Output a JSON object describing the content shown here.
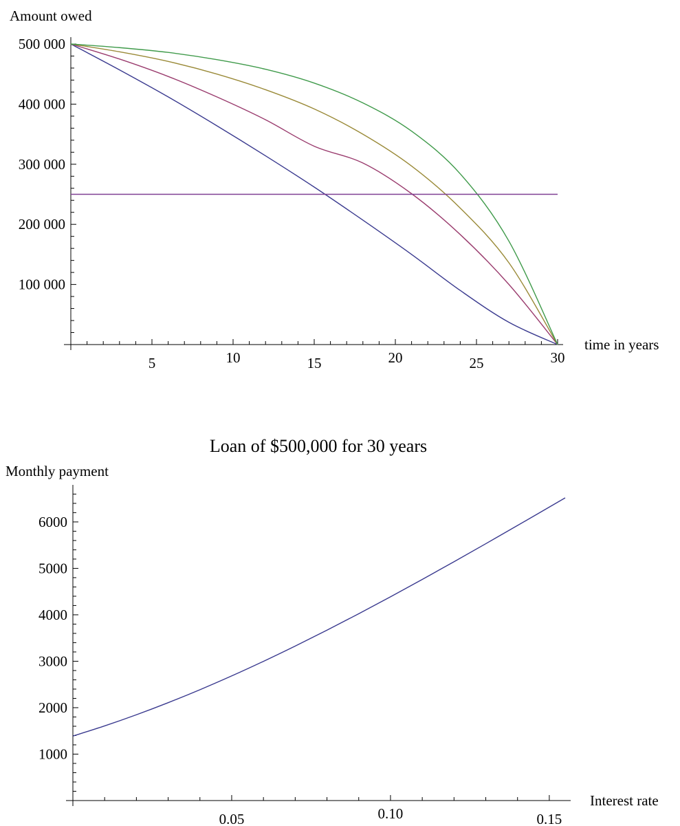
{
  "chart_data": [
    {
      "type": "line",
      "title": "",
      "xlabel": "time in years",
      "ylabel": "Amount owed",
      "xlim": [
        0,
        30
      ],
      "ylim": [
        0,
        500000
      ],
      "xticks": [
        5,
        10,
        15,
        20,
        25,
        30
      ],
      "xtick_labels": [
        "5",
        "10",
        "15",
        "20",
        "25",
        "30"
      ],
      "yticks": [
        100000,
        200000,
        300000,
        400000,
        500000
      ],
      "ytick_labels": [
        "100 000",
        "200 000",
        "300 000",
        "400 000",
        "500 000"
      ],
      "grid": false,
      "colors": [
        "#3a3a8f",
        "#9a3c6e",
        "#9a8a38",
        "#3f9a4a",
        "#7f3f92"
      ],
      "series": [
        {
          "x": [
            0,
            3,
            6,
            9,
            12,
            15,
            18,
            21,
            24,
            27,
            30
          ],
          "values": [
            500000,
            457000,
            412000,
            364000,
            314000,
            262000,
            207000,
            150000,
            90000,
            37000,
            0
          ]
        },
        {
          "x": [
            0,
            3,
            6,
            9,
            12,
            15,
            18,
            21,
            24,
            27,
            30
          ],
          "values": [
            500000,
            475000,
            446000,
            412000,
            374000,
            330000,
            302000,
            251000,
            183000,
            100000,
            0
          ]
        },
        {
          "x": [
            0,
            3,
            6,
            9,
            12,
            15,
            18,
            21,
            24,
            27,
            30
          ],
          "values": [
            500000,
            487000,
            471000,
            450000,
            424000,
            392000,
            350000,
            297000,
            227000,
            136000,
            0
          ]
        },
        {
          "x": [
            0,
            3,
            6,
            9,
            12,
            15,
            18,
            21,
            24,
            27,
            30
          ],
          "values": [
            500000,
            494000,
            486000,
            474000,
            458000,
            435000,
            402000,
            355000,
            284000,
            172000,
            0
          ]
        },
        {
          "x": [
            0,
            30
          ],
          "values": [
            250000,
            250000
          ]
        }
      ]
    },
    {
      "type": "line",
      "title": "Loan of $500,000 for 30 years",
      "xlabel": "Interest rate",
      "ylabel": "Monthly payment",
      "xlim": [
        0,
        0.155
      ],
      "ylim": [
        0,
        6650
      ],
      "xticks": [
        0.05,
        0.1,
        0.15
      ],
      "xtick_labels": [
        "0.05",
        "0.10",
        "0.15"
      ],
      "yticks": [
        1000,
        2000,
        3000,
        4000,
        5000,
        6000
      ],
      "ytick_labels": [
        "1000",
        "2000",
        "3000",
        "4000",
        "5000",
        "6000"
      ],
      "grid": false,
      "colors": [
        "#3a3a8f"
      ],
      "series": [
        {
          "x": [
            0.0,
            0.01,
            0.02,
            0.03,
            0.04,
            0.05,
            0.06,
            0.07,
            0.08,
            0.09,
            0.1,
            0.11,
            0.12,
            0.13,
            0.14,
            0.155
          ],
          "values": [
            1389,
            1608,
            1848,
            2108,
            2387,
            2684,
            2998,
            3327,
            3669,
            4023,
            4388,
            4762,
            5143,
            5531,
            5924,
            6518
          ]
        }
      ]
    }
  ]
}
